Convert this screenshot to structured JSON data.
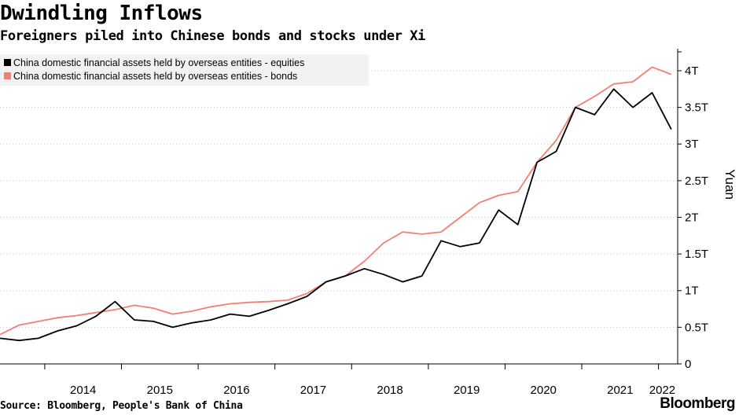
{
  "title": "Dwindling Inflows",
  "subtitle": "Foreigners piled into Chinese bonds and stocks under Xi",
  "source": "Source: Bloomberg, People's Bank of China",
  "brand": "Bloomberg",
  "colors": {
    "equities": "#000000",
    "bonds": "#f37f73",
    "grid": "#c8c8c8"
  },
  "chart_data": {
    "type": "line",
    "ylabel": "Yuan",
    "y_unit": "trillion yuan",
    "ylim": [
      0,
      4.3
    ],
    "y_ticks": [
      0,
      0.5,
      1,
      1.5,
      2,
      2.5,
      3,
      3.5,
      4
    ],
    "y_tick_labels": [
      "0",
      "0.5T",
      "1T",
      "1.5T",
      "2T",
      "2.5T",
      "3T",
      "3.5T",
      "4T"
    ],
    "xlim": [
      "2013-06",
      "2022-04"
    ],
    "x_tick_labels": [
      "2014",
      "2015",
      "2016",
      "2017",
      "2018",
      "2019",
      "2020",
      "2021",
      "2022"
    ],
    "grid": "horizontal dashed",
    "legend_position": "top-left",
    "x": [
      "2013-06",
      "2013-09",
      "2013-12",
      "2014-03",
      "2014-06",
      "2014-09",
      "2014-12",
      "2015-03",
      "2015-06",
      "2015-09",
      "2015-12",
      "2016-03",
      "2016-06",
      "2016-09",
      "2016-12",
      "2017-03",
      "2017-06",
      "2017-09",
      "2017-12",
      "2018-03",
      "2018-06",
      "2018-09",
      "2018-12",
      "2019-03",
      "2019-06",
      "2019-09",
      "2019-12",
      "2020-03",
      "2020-06",
      "2020-09",
      "2020-12",
      "2021-03",
      "2021-06",
      "2021-09",
      "2021-12",
      "2022-03"
    ],
    "series": [
      {
        "name": "China domestic financial assets held by overseas entities - equities",
        "values": [
          0.35,
          0.32,
          0.35,
          0.45,
          0.52,
          0.65,
          0.85,
          0.6,
          0.58,
          0.5,
          0.56,
          0.6,
          0.68,
          0.65,
          0.73,
          0.82,
          0.92,
          1.12,
          1.2,
          1.3,
          1.22,
          1.12,
          1.2,
          1.68,
          1.6,
          1.65,
          2.1,
          1.9,
          2.75,
          2.9,
          3.5,
          3.4,
          3.75,
          3.5,
          3.7,
          3.2
        ]
      },
      {
        "name": "China domestic financial assets held by overseas entities - bonds",
        "values": [
          0.4,
          0.53,
          0.58,
          0.63,
          0.66,
          0.7,
          0.74,
          0.8,
          0.76,
          0.68,
          0.72,
          0.78,
          0.82,
          0.84,
          0.85,
          0.87,
          0.96,
          1.12,
          1.2,
          1.4,
          1.65,
          1.8,
          1.77,
          1.8,
          2.0,
          2.2,
          2.3,
          2.35,
          2.75,
          3.05,
          3.5,
          3.65,
          3.82,
          3.85,
          4.05,
          3.95
        ]
      }
    ]
  }
}
